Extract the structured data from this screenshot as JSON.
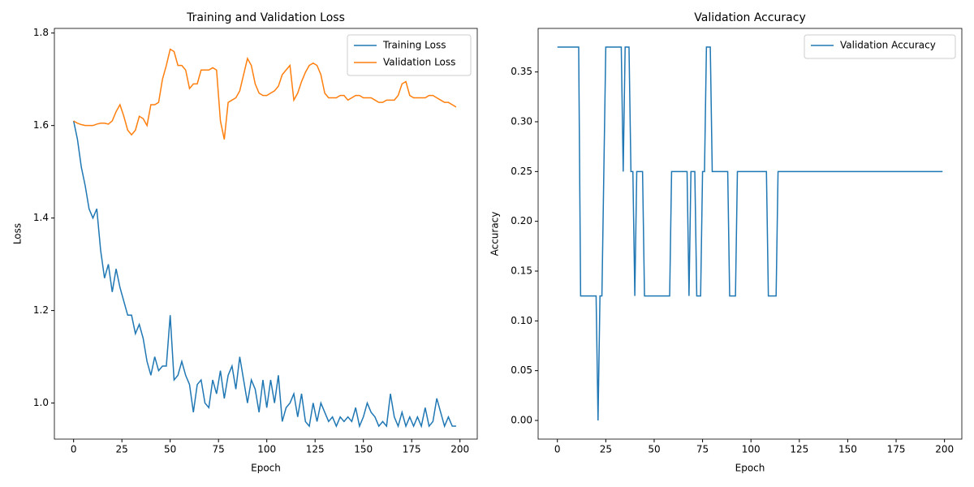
{
  "charts": [
    {
      "chart_data": {
        "type": "line",
        "title": "Training and Validation Loss",
        "x_label": "Epoch",
        "y_label": "Loss",
        "x": [
          0,
          2,
          4,
          6,
          8,
          10,
          12,
          14,
          16,
          18,
          20,
          22,
          24,
          26,
          28,
          30,
          32,
          34,
          36,
          38,
          40,
          42,
          44,
          46,
          48,
          50,
          52,
          54,
          56,
          58,
          60,
          62,
          64,
          66,
          68,
          70,
          72,
          74,
          76,
          78,
          80,
          82,
          84,
          86,
          88,
          90,
          92,
          94,
          96,
          98,
          100,
          102,
          104,
          106,
          108,
          110,
          112,
          114,
          116,
          118,
          120,
          122,
          124,
          126,
          128,
          130,
          132,
          134,
          136,
          138,
          140,
          142,
          144,
          146,
          148,
          150,
          152,
          154,
          156,
          158,
          160,
          162,
          164,
          166,
          168,
          170,
          172,
          174,
          176,
          178,
          180,
          182,
          184,
          186,
          188,
          190,
          192,
          194,
          196,
          198
        ],
        "series": [
          {
            "name": "Training Loss",
            "color": "#1f77b4",
            "values": [
              1.61,
              1.57,
              1.51,
              1.47,
              1.42,
              1.4,
              1.42,
              1.33,
              1.27,
              1.3,
              1.24,
              1.29,
              1.25,
              1.22,
              1.19,
              1.19,
              1.15,
              1.17,
              1.14,
              1.09,
              1.06,
              1.1,
              1.07,
              1.08,
              1.08,
              1.19,
              1.05,
              1.06,
              1.09,
              1.06,
              1.04,
              0.98,
              1.04,
              1.05,
              1.0,
              0.99,
              1.05,
              1.02,
              1.07,
              1.01,
              1.06,
              1.08,
              1.03,
              1.1,
              1.05,
              1.0,
              1.05,
              1.03,
              0.98,
              1.05,
              0.99,
              1.05,
              1.0,
              1.06,
              0.96,
              0.99,
              1.0,
              1.02,
              0.97,
              1.02,
              0.96,
              0.95,
              1.0,
              0.96,
              1.0,
              0.98,
              0.96,
              0.97,
              0.95,
              0.97,
              0.96,
              0.97,
              0.96,
              0.99,
              0.95,
              0.97,
              1.0,
              0.98,
              0.97,
              0.95,
              0.96,
              0.95,
              1.02,
              0.97,
              0.95,
              0.98,
              0.95,
              0.97,
              0.95,
              0.97,
              0.95,
              0.99,
              0.95,
              0.96,
              1.01,
              0.98,
              0.95,
              0.97,
              0.95,
              0.95
            ]
          },
          {
            "name": "Validation Loss",
            "color": "#ff7f0e",
            "values": [
              1.61,
              1.605,
              1.602,
              1.6,
              1.6,
              1.6,
              1.603,
              1.605,
              1.605,
              1.603,
              1.61,
              1.63,
              1.645,
              1.62,
              1.59,
              1.58,
              1.59,
              1.62,
              1.615,
              1.6,
              1.645,
              1.645,
              1.65,
              1.7,
              1.73,
              1.765,
              1.76,
              1.73,
              1.73,
              1.72,
              1.68,
              1.69,
              1.69,
              1.72,
              1.72,
              1.72,
              1.725,
              1.72,
              1.61,
              1.57,
              1.65,
              1.655,
              1.66,
              1.675,
              1.71,
              1.745,
              1.73,
              1.69,
              1.67,
              1.665,
              1.665,
              1.67,
              1.675,
              1.685,
              1.71,
              1.72,
              1.73,
              1.655,
              1.67,
              1.695,
              1.715,
              1.73,
              1.735,
              1.73,
              1.71,
              1.67,
              1.66,
              1.66,
              1.66,
              1.665,
              1.665,
              1.655,
              1.66,
              1.665,
              1.665,
              1.66,
              1.66,
              1.66,
              1.655,
              1.65,
              1.65,
              1.655,
              1.655,
              1.655,
              1.665,
              1.69,
              1.695,
              1.665,
              1.66,
              1.66,
              1.66,
              1.66,
              1.665,
              1.665,
              1.66,
              1.655,
              1.65,
              1.65,
              1.645,
              1.64
            ]
          }
        ],
        "xlim": [
          -9.95,
          208.95
        ],
        "xticks": [
          0,
          25,
          50,
          75,
          100,
          125,
          150,
          175,
          200
        ],
        "ylim": [
          0.922,
          1.81
        ],
        "yticks": [
          {
            "value": 1.0,
            "label": "1.0"
          },
          {
            "value": 1.2,
            "label": "1.2"
          },
          {
            "value": 1.4,
            "label": "1.4"
          },
          {
            "value": 1.6,
            "label": "1.6"
          },
          {
            "value": 1.8,
            "label": "1.8"
          }
        ],
        "legend": "upper right"
      }
    },
    {
      "chart_data": {
        "type": "line",
        "title": "Validation Accuracy",
        "x_label": "Epoch",
        "y_label": "Accuracy",
        "x": [
          0,
          11,
          12,
          20,
          21,
          22,
          23,
          25,
          33,
          34,
          35,
          37,
          38,
          39,
          40,
          41,
          44,
          45,
          58,
          59,
          67,
          68,
          69,
          71,
          72,
          74,
          75,
          76,
          77,
          79,
          80,
          88,
          89,
          92,
          93,
          108,
          109,
          113,
          114,
          199
        ],
        "series": [
          {
            "name": "Validation Accuracy",
            "color": "#1f77b4",
            "values": [
              0.375,
              0.375,
              0.125,
              0.125,
              0,
              0.125,
              0.125,
              0.375,
              0.375,
              0.25,
              0.375,
              0.375,
              0.25,
              0.25,
              0.125,
              0.25,
              0.25,
              0.125,
              0.125,
              0.25,
              0.25,
              0.125,
              0.25,
              0.25,
              0.125,
              0.125,
              0.25,
              0.25,
              0.375,
              0.375,
              0.25,
              0.25,
              0.125,
              0.125,
              0.25,
              0.25,
              0.125,
              0.125,
              0.25,
              0.25
            ]
          }
        ],
        "xlim": [
          -9.95,
          208.95
        ],
        "xticks": [
          0,
          25,
          50,
          75,
          100,
          125,
          150,
          175,
          200
        ],
        "ylim": [
          -0.01875,
          0.39375
        ],
        "yticks": [
          {
            "value": 0,
            "label": "0.00"
          },
          {
            "value": 0.05,
            "label": "0.05"
          },
          {
            "value": 0.1,
            "label": "0.10"
          },
          {
            "value": 0.15,
            "label": "0.15"
          },
          {
            "value": 0.2,
            "label": "0.20"
          },
          {
            "value": 0.25,
            "label": "0.25"
          },
          {
            "value": 0.3,
            "label": "0.30"
          },
          {
            "value": 0.35,
            "label": "0.35"
          }
        ],
        "legend": "upper right"
      }
    }
  ]
}
